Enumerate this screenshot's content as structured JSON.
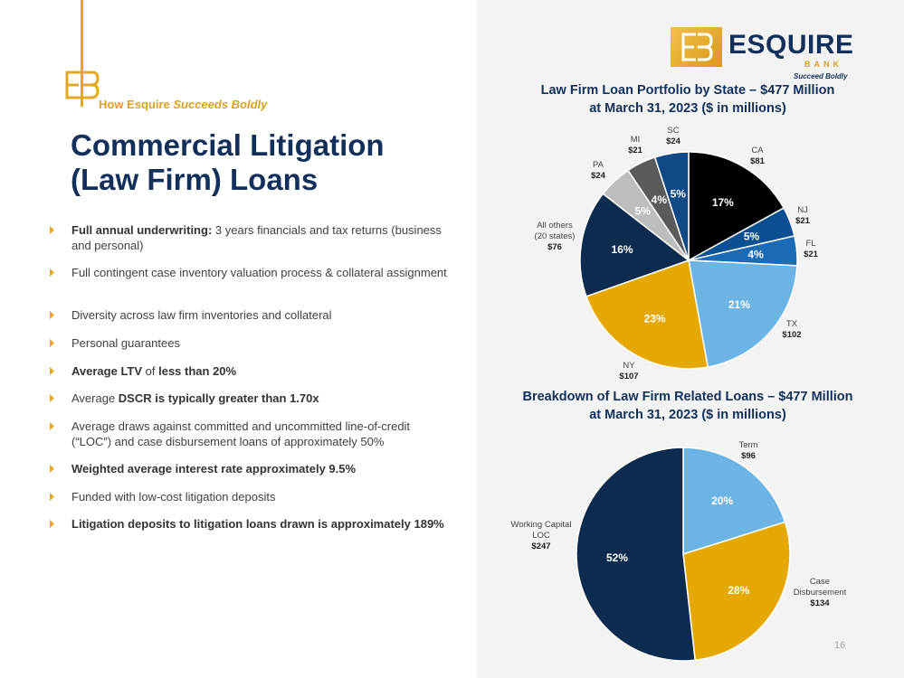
{
  "brand": {
    "tagline_prefix": "How Esquire ",
    "tagline_emphasis": "Succeeds Boldly",
    "logo_name": "ESQUIRE",
    "logo_bank": "BANK",
    "logo_tagline": "Succeed Boldly"
  },
  "title": {
    "line1": "Commercial Litigation",
    "line2": "(Law Firm) Loans"
  },
  "colors": {
    "navy": "#13305a",
    "gold": "#e5a823",
    "panel": "#f3f3f4"
  },
  "bullets": [
    {
      "bold": "Full annual underwriting:",
      "text": " 3 years financials and tax returns (business and personal)"
    },
    {
      "bold": "",
      "text": "Full contingent case inventory valuation process & collateral assignment"
    },
    {
      "bold": "",
      "text": "Diversity across law firm inventories and collateral"
    },
    {
      "bold": "",
      "text": "Personal guarantees"
    },
    {
      "html": "<b>Average LTV</b> of <b>less than 20%</b>"
    },
    {
      "html": "Average <b>DSCR is typically greater than 1.70x</b>"
    },
    {
      "bold": "",
      "text": "Average draws against committed and uncommitted line-of-credit (“LOC”) and case disbursement loans of approximately 50%"
    },
    {
      "bold": "Weighted average interest rate approximately 9.5%",
      "text": ""
    },
    {
      "bold": "",
      "text": "Funded with low-cost litigation deposits"
    },
    {
      "bold": "Litigation deposits to litigation loans drawn is approximately 189%",
      "text": ""
    }
  ],
  "chart_data": [
    {
      "type": "pie",
      "title": "Law Firm Loan Portfolio by State – $477 Million",
      "subtitle": "at March 31, 2023 ($ in millions)",
      "slices": [
        {
          "label": "CA",
          "value": 81,
          "value_label": "$81",
          "percent": "17%",
          "color": "#000000",
          "pct_color": "#ffffff"
        },
        {
          "label": "NJ",
          "value": 21,
          "value_label": "$21",
          "percent": "5%",
          "color": "#0a4f8f",
          "pct_color": "#ffffff"
        },
        {
          "label": "FL",
          "value": 21,
          "value_label": "$21",
          "percent": "4%",
          "color": "#1c6bb6",
          "pct_color": "#ffffff"
        },
        {
          "label": "TX",
          "value": 102,
          "value_label": "$102",
          "percent": "21%",
          "color": "#6cb4e4",
          "pct_color": "#ffffff"
        },
        {
          "label": "NY",
          "value": 107,
          "value_label": "$107",
          "percent": "23%",
          "color": "#e5a800",
          "pct_color": "#ffffff"
        },
        {
          "label": "All others",
          "label2": "(20 states)",
          "value": 76,
          "value_label": "$76",
          "percent": "16%",
          "color": "#0d2b4e",
          "pct_color": "#ffffff"
        },
        {
          "label": "PA",
          "value": 24,
          "value_label": "$24",
          "percent": "5%",
          "color": "#bdbdbd",
          "pct_color": "#ffffff"
        },
        {
          "label": "MI",
          "value": 21,
          "value_label": "$21",
          "percent": "4%",
          "color": "#5a5a5a",
          "pct_color": "#ffffff"
        },
        {
          "label": "SC",
          "value": 24,
          "value_label": "$24",
          "percent": "5%",
          "color": "#0f4a86",
          "pct_color": "#ffffff"
        }
      ]
    },
    {
      "type": "pie",
      "title": "Breakdown of Law Firm Related Loans – $477 Million",
      "subtitle": "at March 31, 2023 ($ in millions)",
      "slices": [
        {
          "label": "Term",
          "value": 96,
          "value_label": "$96",
          "percent": "20%",
          "color": "#6cb4e4",
          "pct_color": "#ffffff"
        },
        {
          "label": "Case",
          "label2": "Disbursement",
          "value": 134,
          "value_label": "$134",
          "percent": "28%",
          "color": "#e5a800",
          "pct_color": "#ffffff"
        },
        {
          "label": "Working Capital",
          "label2": "LOC",
          "value": 247,
          "value_label": "$247",
          "percent": "52%",
          "color": "#0d2b4e",
          "pct_color": "#ffffff"
        }
      ]
    }
  ],
  "page_number": "16"
}
